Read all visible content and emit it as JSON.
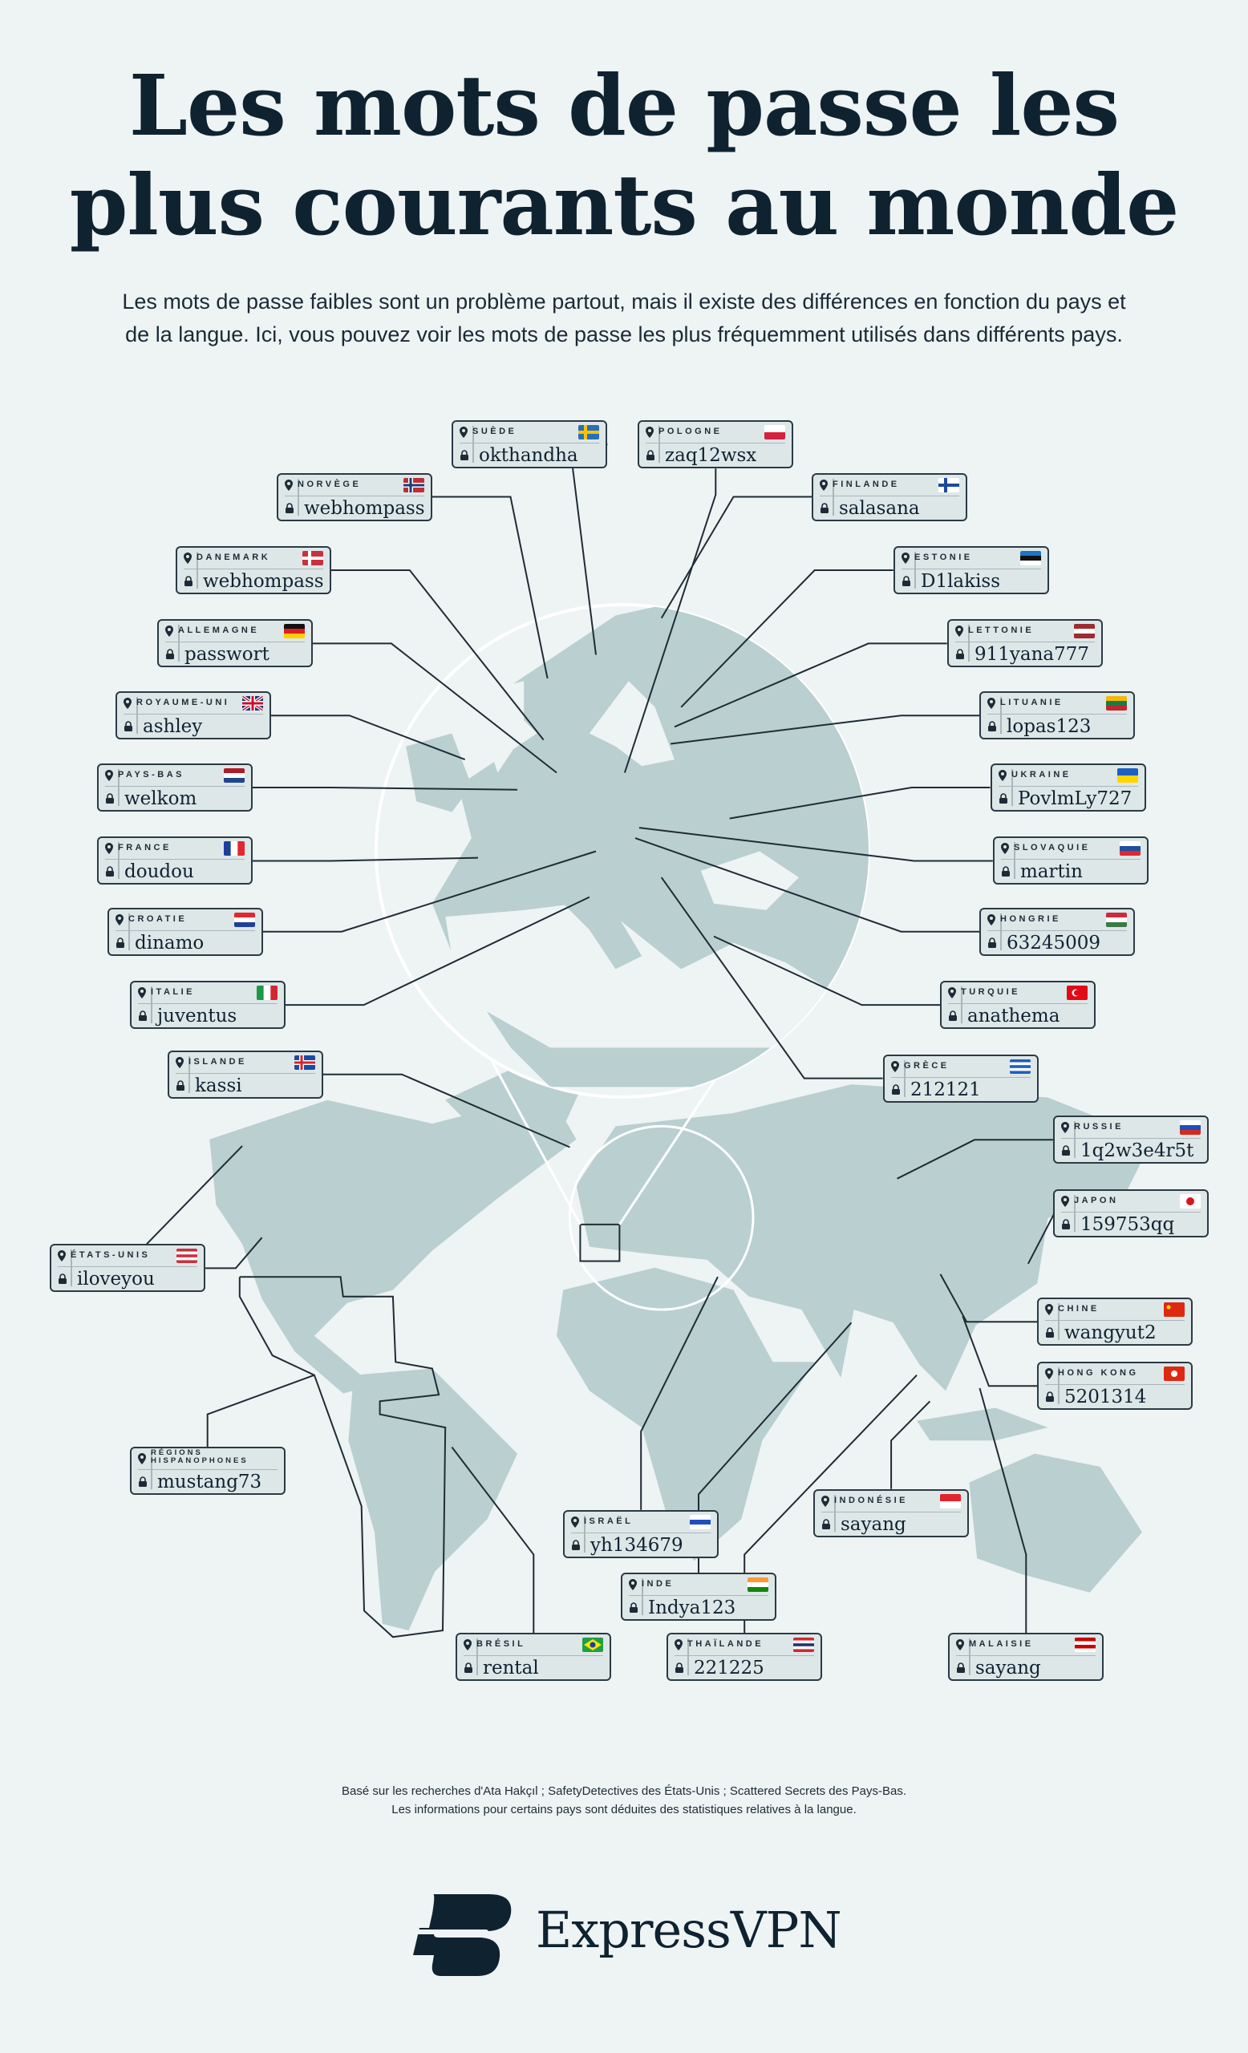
{
  "header": {
    "title_line1": "Les mots de passe les",
    "title_line2": "plus courants au monde",
    "subtitle_line1": "Les mots de passe faibles sont un problème partout, mais il existe des différences en fonction du pays et",
    "subtitle_line2": "de la langue. Ici, vous pouvez voir les mots de passe les plus fréquemment utilisés dans différents pays."
  },
  "colors": {
    "background": "#eef3f4",
    "land": "#b9cfd0",
    "text": "#0f2230",
    "label_bg": "#dde7e8",
    "line": "#1f2c35"
  },
  "labels": [
    {
      "country": "SUÈDE",
      "password": "okthandha",
      "flag": "sweden"
    },
    {
      "country": "POLOGNE",
      "password": "zaq12wsx",
      "flag": "poland"
    },
    {
      "country": "NORVÈGE",
      "password": "webhompass",
      "flag": "norway"
    },
    {
      "country": "FINLANDE",
      "password": "salasana",
      "flag": "finland"
    },
    {
      "country": "DANEMARK",
      "password": "webhompass",
      "flag": "denmark"
    },
    {
      "country": "ESTONIE",
      "password": "D1lakiss",
      "flag": "estonia"
    },
    {
      "country": "ALLEMAGNE",
      "password": "passwort",
      "flag": "germany"
    },
    {
      "country": "LETTONIE",
      "password": "911yana777",
      "flag": "latvia"
    },
    {
      "country": "ROYAUME-UNI",
      "password": "ashley",
      "flag": "uk"
    },
    {
      "country": "LITUANIE",
      "password": "lopas123",
      "flag": "lithuania"
    },
    {
      "country": "PAYS-BAS",
      "password": "welkom",
      "flag": "netherlands"
    },
    {
      "country": "UKRAINE",
      "password": "PovlmLy727",
      "flag": "ukraine"
    },
    {
      "country": "FRANCE",
      "password": "doudou",
      "flag": "france"
    },
    {
      "country": "SLOVAQUIE",
      "password": "martin",
      "flag": "slovakia"
    },
    {
      "country": "CROATIE",
      "password": "dinamo",
      "flag": "croatia"
    },
    {
      "country": "HONGRIE",
      "password": "63245009",
      "flag": "hungary"
    },
    {
      "country": "ITALIE",
      "password": "juventus",
      "flag": "italy"
    },
    {
      "country": "TURQUIE",
      "password": "anathema",
      "flag": "turkey"
    },
    {
      "country": "ISLANDE",
      "password": "kassi",
      "flag": "iceland"
    },
    {
      "country": "GRÈCE",
      "password": "212121",
      "flag": "greece"
    },
    {
      "country": "RUSSIE",
      "password": "1q2w3e4r5t",
      "flag": "russia"
    },
    {
      "country": "JAPON",
      "password": "159753qq",
      "flag": "japan"
    },
    {
      "country": "ÉTATS-UNIS",
      "password": "iloveyou",
      "flag": "usa"
    },
    {
      "country": "CHINE",
      "password": "wangyut2",
      "flag": "china"
    },
    {
      "country": "HONG KONG",
      "password": "5201314",
      "flag": "hongkong"
    },
    {
      "country": "RÉGIONS HISPANOPHONES",
      "password": "mustang73",
      "flag": ""
    },
    {
      "country": "INDONÉSIE",
      "password": "sayang",
      "flag": "indonesia"
    },
    {
      "country": "ISRAËL",
      "password": "yh134679",
      "flag": "israel"
    },
    {
      "country": "INDE",
      "password": "Indya123",
      "flag": "india"
    },
    {
      "country": "BRÉSIL",
      "password": "rental",
      "flag": "brazil"
    },
    {
      "country": "THAÏLANDE",
      "password": "221225",
      "flag": "thailand"
    },
    {
      "country": "MALAISIE",
      "password": "sayang",
      "flag": "malaysia"
    }
  ],
  "footer": {
    "source_line1": "Basé sur les recherches d'Ata Hakçıl ; SafetyDetectives des États-Unis ; Scattered Secrets des Pays-Bas.",
    "source_line2": "Les informations pour certains pays sont déduites des statistiques relatives à la langue.",
    "brand": "ExpressVPN"
  }
}
